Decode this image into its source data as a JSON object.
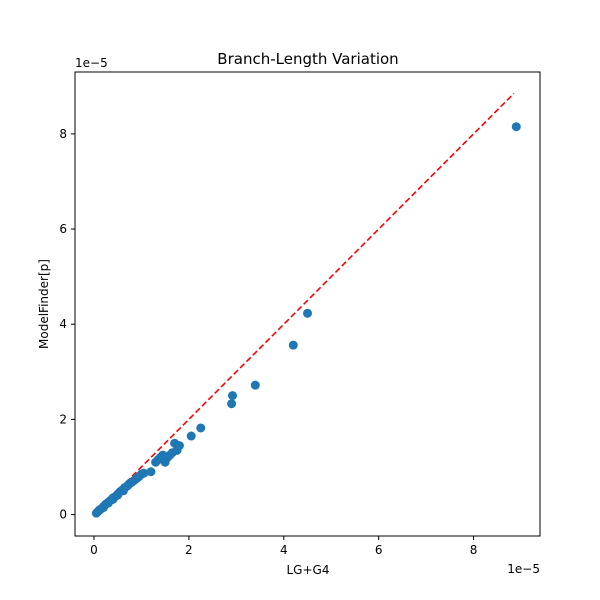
{
  "chart_data": {
    "type": "scatter",
    "title": "Branch-Length Variation",
    "xlabel": "LG+G4",
    "ylabel": "ModelFinder[p]",
    "x_offset_label": "1e−5",
    "y_offset_label": "1e−5",
    "xlim": [
      -0.4,
      9.4
    ],
    "ylim": [
      -0.45,
      9.3
    ],
    "xticks": [
      0,
      2,
      4,
      6,
      8
    ],
    "yticks": [
      0,
      2,
      4,
      6,
      8
    ],
    "x_tick_labels": [
      "0",
      "2",
      "4",
      "6",
      "8"
    ],
    "y_tick_labels": [
      "0",
      "2",
      "4",
      "6",
      "8"
    ],
    "grid": false,
    "point_color": "#1f77b4",
    "reference_line": {
      "from": [
        0,
        0
      ],
      "to": [
        8.85,
        8.85
      ],
      "color": "#ff0000",
      "style": "dashed"
    },
    "points": [
      [
        0.05,
        0.03
      ],
      [
        0.08,
        0.06
      ],
      [
        0.12,
        0.1
      ],
      [
        0.15,
        0.12
      ],
      [
        0.2,
        0.17
      ],
      [
        0.25,
        0.22
      ],
      [
        0.3,
        0.26
      ],
      [
        0.35,
        0.3
      ],
      [
        0.4,
        0.35
      ],
      [
        0.45,
        0.38
      ],
      [
        0.5,
        0.43
      ],
      [
        0.55,
        0.48
      ],
      [
        0.6,
        0.52
      ],
      [
        0.65,
        0.57
      ],
      [
        0.7,
        0.6
      ],
      [
        0.75,
        0.65
      ],
      [
        0.8,
        0.68
      ],
      [
        0.85,
        0.72
      ],
      [
        0.9,
        0.76
      ],
      [
        0.95,
        0.8
      ],
      [
        1.0,
        0.85
      ],
      [
        1.05,
        0.87
      ],
      [
        0.3,
        0.24
      ],
      [
        0.5,
        0.41
      ],
      [
        0.62,
        0.5
      ],
      [
        0.72,
        0.62
      ],
      [
        0.92,
        0.78
      ],
      [
        0.4,
        0.32
      ],
      [
        0.2,
        0.15
      ],
      [
        0.1,
        0.08
      ],
      [
        1.2,
        0.9
      ],
      [
        1.3,
        1.1
      ],
      [
        1.35,
        1.15
      ],
      [
        1.4,
        1.2
      ],
      [
        1.45,
        1.25
      ],
      [
        1.5,
        1.1
      ],
      [
        1.55,
        1.2
      ],
      [
        1.6,
        1.25
      ],
      [
        1.65,
        1.3
      ],
      [
        1.7,
        1.5
      ],
      [
        1.75,
        1.35
      ],
      [
        1.8,
        1.45
      ],
      [
        2.05,
        1.65
      ],
      [
        2.25,
        1.82
      ],
      [
        2.9,
        2.33
      ],
      [
        2.92,
        2.5
      ],
      [
        3.4,
        2.72
      ],
      [
        4.2,
        3.56
      ],
      [
        4.5,
        4.23
      ],
      [
        8.9,
        8.15
      ]
    ]
  }
}
